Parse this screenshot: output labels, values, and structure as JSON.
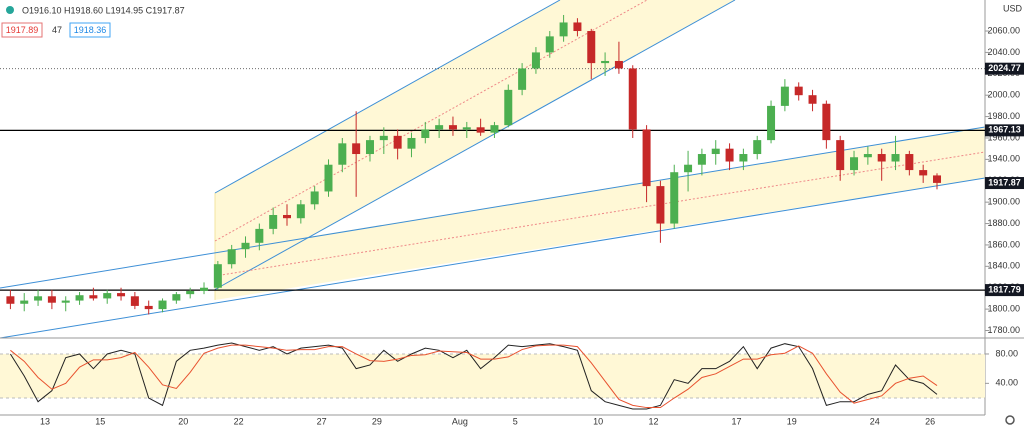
{
  "toolbar": {
    "ohlc": "O1916.10 H1918.60 L1914.95 C1917.87",
    "bid": "1917.89",
    "spread": "47",
    "ask": "1918.36",
    "currency": "USD"
  },
  "chart_data": [
    {
      "type": "candlestick",
      "categories": [
        null,
        null,
        null,
        "13",
        null,
        null,
        null,
        "15",
        null,
        null,
        null,
        null,
        null,
        "20",
        null,
        null,
        null,
        "22",
        null,
        null,
        null,
        null,
        null,
        "27",
        null,
        null,
        null,
        "29",
        null,
        null,
        null,
        null,
        null,
        "Aug",
        null,
        null,
        null,
        "5",
        null,
        null,
        null,
        null,
        null,
        "10",
        null,
        null,
        null,
        "12",
        null,
        null,
        null,
        null,
        null,
        "17",
        null,
        null,
        null,
        "19",
        null,
        null,
        null,
        null,
        null,
        "24",
        null,
        null,
        null,
        "26"
      ],
      "open": [
        1812,
        1805,
        1808,
        1812,
        1806,
        1808,
        1813,
        1810,
        1815,
        1812,
        1803,
        1800,
        1808,
        1814,
        1817,
        1820,
        1842,
        1856,
        1862,
        1875,
        1888,
        1885,
        1898,
        1910,
        1935,
        1955,
        1945,
        1958,
        1962,
        1950,
        1960,
        1968,
        1972,
        1968,
        1970,
        1965,
        1972,
        2005,
        2025,
        2040,
        2055,
        2068,
        2060,
        2030,
        2032,
        2025,
        1968,
        1915,
        1880,
        1928,
        1935,
        1945,
        1950,
        1938,
        1945,
        1958,
        1990,
        2008,
        2000,
        1992,
        1958,
        1930,
        1942,
        1945,
        1938,
        1945,
        1930,
        1925
      ],
      "high": [
        1818,
        1815,
        1818,
        1818,
        1812,
        1816,
        1820,
        1818,
        1820,
        1816,
        1808,
        1810,
        1816,
        1820,
        1825,
        1845,
        1860,
        1868,
        1880,
        1895,
        1898,
        1902,
        1915,
        1940,
        1960,
        1985,
        1962,
        1970,
        1968,
        1965,
        1975,
        1978,
        1980,
        1975,
        1978,
        1975,
        2010,
        2030,
        2045,
        2060,
        2075,
        2072,
        2062,
        2040,
        2050,
        2028,
        1972,
        1920,
        1935,
        1948,
        1950,
        1958,
        1955,
        1950,
        1962,
        1995,
        2015,
        2012,
        2005,
        1995,
        1962,
        1948,
        1952,
        1950,
        1962,
        1948,
        1935,
        1927
      ],
      "low": [
        1800,
        1798,
        1803,
        1800,
        1798,
        1804,
        1808,
        1805,
        1808,
        1800,
        1795,
        1797,
        1805,
        1810,
        1814,
        1818,
        1838,
        1848,
        1855,
        1870,
        1878,
        1880,
        1893,
        1905,
        1928,
        1905,
        1938,
        1945,
        1940,
        1942,
        1955,
        1960,
        1962,
        1960,
        1962,
        1960,
        1970,
        2000,
        2020,
        2035,
        2050,
        2055,
        2015,
        2018,
        2020,
        1960,
        1900,
        1862,
        1875,
        1910,
        1925,
        1935,
        1930,
        1930,
        1940,
        1955,
        1985,
        1995,
        1985,
        1950,
        1920,
        1925,
        1935,
        1920,
        1930,
        1925,
        1918,
        1912
      ],
      "close": [
        1805,
        1808,
        1812,
        1806,
        1808,
        1813,
        1810,
        1815,
        1812,
        1803,
        1800,
        1808,
        1814,
        1817,
        1820,
        1842,
        1856,
        1862,
        1875,
        1888,
        1885,
        1898,
        1910,
        1935,
        1955,
        1945,
        1958,
        1962,
        1950,
        1960,
        1968,
        1972,
        1968,
        1970,
        1965,
        1972,
        2005,
        2025,
        2040,
        2055,
        2068,
        2060,
        2030,
        2032,
        2025,
        1968,
        1915,
        1880,
        1928,
        1935,
        1945,
        1950,
        1938,
        1945,
        1958,
        1990,
        2008,
        2000,
        1992,
        1958,
        1930,
        1942,
        1945,
        1938,
        1945,
        1930,
        1925,
        1918
      ],
      "up_color": "#4caf50",
      "down_color": "#c62828",
      "ylim": [
        1773,
        2089
      ],
      "yticks": [
        {
          "value": 1780,
          "label": "1780.00"
        },
        {
          "value": 1800,
          "label": "1800.00"
        },
        {
          "value": 1820,
          "label": "1820.00"
        },
        {
          "value": 1840,
          "label": "1840.00"
        },
        {
          "value": 1860,
          "label": "1860.00"
        },
        {
          "value": 1880,
          "label": "1880.00"
        },
        {
          "value": 1900,
          "label": "1900.00"
        },
        {
          "value": 1920,
          "label": "1920.00"
        },
        {
          "value": 1940,
          "label": "1940.00"
        },
        {
          "value": 1960,
          "label": "1960.00"
        },
        {
          "value": 1980,
          "label": "1980.00"
        },
        {
          "value": 2000,
          "label": "2000.00"
        },
        {
          "value": 2020,
          "label": "2020.00"
        },
        {
          "value": 2040,
          "label": "2040.00"
        },
        {
          "value": 2060,
          "label": "2060.00"
        }
      ],
      "price_lines": [
        {
          "value": 1967.13,
          "style": "solid"
        },
        {
          "value": 1817.79,
          "style": "solid"
        },
        {
          "value": 2024.77,
          "style": "dotted"
        }
      ],
      "last_price": 1917.87
    },
    {
      "type": "line",
      "series": [
        {
          "color": "#222222",
          "values": [
            80,
            50,
            15,
            30,
            75,
            80,
            60,
            80,
            85,
            80,
            20,
            10,
            70,
            85,
            88,
            92,
            95,
            90,
            85,
            90,
            80,
            88,
            90,
            92,
            88,
            60,
            65,
            85,
            70,
            80,
            88,
            85,
            75,
            85,
            60,
            75,
            92,
            90,
            92,
            94,
            90,
            85,
            30,
            15,
            10,
            5,
            5,
            10,
            45,
            40,
            60,
            60,
            70,
            90,
            60,
            88,
            94,
            90,
            60,
            10,
            15,
            15,
            25,
            30,
            65,
            45,
            40,
            25
          ]
        },
        {
          "color": "#e8522f",
          "values": [
            85,
            70,
            48,
            32,
            40,
            62,
            72,
            72,
            75,
            82,
            62,
            38,
            33,
            55,
            81,
            88,
            92,
            92,
            90,
            88,
            85,
            86,
            86,
            90,
            90,
            80,
            71,
            70,
            73,
            78,
            79,
            84,
            83,
            82,
            73,
            73,
            76,
            86,
            91,
            92,
            92,
            90,
            68,
            43,
            18,
            10,
            7,
            7,
            20,
            32,
            48,
            53,
            63,
            73,
            73,
            79,
            81,
            91,
            81,
            53,
            28,
            13,
            18,
            23,
            40,
            47,
            50,
            37
          ]
        }
      ],
      "ylim": [
        0,
        100
      ],
      "yticks": [
        {
          "value": 40,
          "label": "40.00"
        },
        {
          "value": 80,
          "label": "80.00"
        }
      ],
      "band": [
        20,
        80
      ]
    }
  ]
}
